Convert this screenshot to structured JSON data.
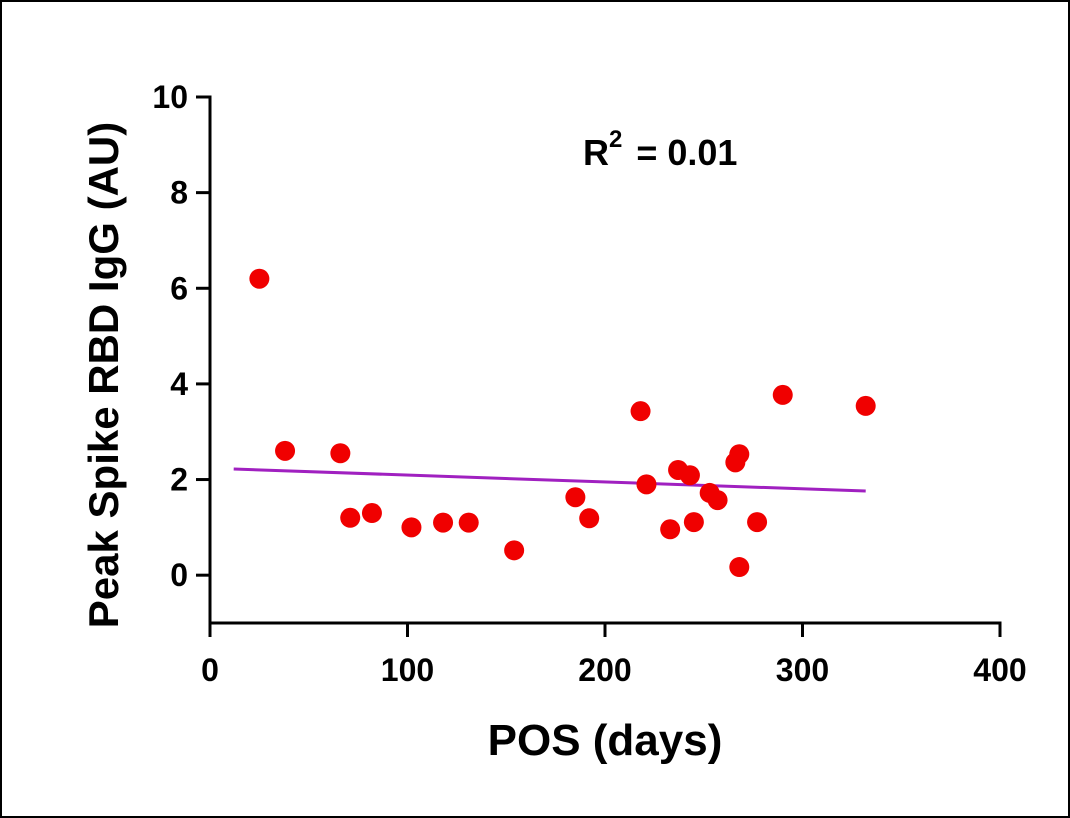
{
  "chart_data": {
    "type": "scatter",
    "xlabel": "POS (days)",
    "ylabel": "Peak Spike RBD IgG (AU)",
    "annotation": {
      "text": "R",
      "superscript": "2",
      "suffix": "= 0.01"
    },
    "xlim": [
      0,
      400
    ],
    "xticks": [
      0,
      100,
      200,
      300,
      400
    ],
    "ylim": [
      -1,
      10
    ],
    "yticks": [
      0,
      2,
      4,
      6,
      8,
      10
    ],
    "color": "#f00000",
    "x": [
      25,
      38,
      66,
      71,
      82,
      102,
      118,
      131,
      154,
      185,
      192,
      218,
      221,
      233,
      237,
      243,
      245,
      253,
      257,
      266,
      268,
      268,
      277,
      290,
      332
    ],
    "y": [
      6.2,
      2.6,
      2.55,
      1.2,
      1.3,
      1.0,
      1.1,
      1.1,
      0.52,
      1.63,
      1.19,
      3.43,
      1.9,
      0.96,
      2.2,
      2.09,
      1.11,
      1.72,
      1.57,
      2.36,
      2.53,
      0.17,
      1.11,
      3.77,
      3.54
    ],
    "fit": {
      "x": [
        12,
        332
      ],
      "y": [
        2.22,
        1.76
      ],
      "color": "#a020c0"
    }
  }
}
